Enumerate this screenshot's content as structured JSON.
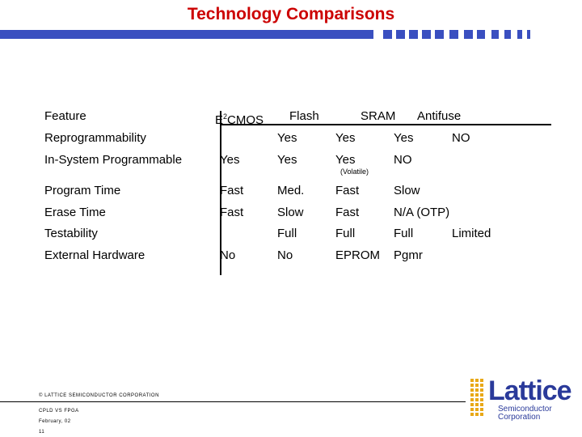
{
  "title": "Technology Comparisons",
  "table": {
    "headers": {
      "feature": "Feature",
      "e2_base": "E",
      "e2_sup": "2",
      "e2_rest": "CMOS",
      "flash": "Flash",
      "sram": "SRAM",
      "antifuse": "Antifuse"
    },
    "rows": [
      {
        "label": "Reprogrammability",
        "e2cmos": "",
        "flash": "Yes",
        "sram": "Yes",
        "antifuse": "Yes",
        "extra": "NO"
      },
      {
        "label": "In-System Programmable",
        "e2cmos": "Yes",
        "flash": "Yes",
        "sram": "Yes",
        "antifuse": "NO",
        "note": "(Volatile)"
      },
      {
        "label": "Program Time",
        "e2cmos": "Fast",
        "flash": "Med.",
        "sram": "Fast",
        "antifuse": "Slow"
      },
      {
        "label": "Erase Time",
        "e2cmos": "Fast",
        "flash": "Slow",
        "sram": "Fast",
        "antifuse": "N/A (OTP)"
      },
      {
        "label": "Testability",
        "e2cmos": "",
        "flash": "Full",
        "sram": "Full",
        "antifuse": "Full",
        "extra": "Limited"
      },
      {
        "label": "External Hardware",
        "e2cmos": "No",
        "flash": "No",
        "sram": "EPROM",
        "antifuse": "Pgmr"
      }
    ]
  },
  "footer": {
    "copyright": "© LATTICE SEMICONDUCTOR CORPORATION",
    "topic": "CPLD VS FPGA",
    "date": "February, 02",
    "page": "11"
  },
  "logo": {
    "word": "Lattice",
    "line1": "Semiconductor",
    "line2": "Corporation"
  },
  "colors": {
    "title": "#cc0000",
    "accent_bar": "#3a4fc0",
    "logo": "#2a3a9a"
  }
}
